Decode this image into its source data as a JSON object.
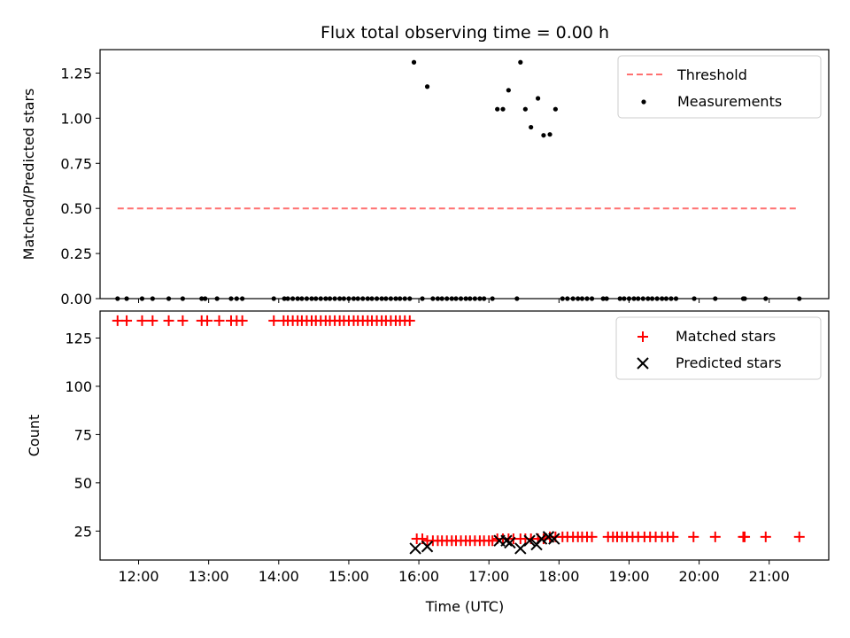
{
  "chart_data": [
    {
      "type": "scatter",
      "title": "Flux total observing time = 0.00 h",
      "xlabel": "",
      "ylabel": "Matched/Predicted stars",
      "xlim": [
        11.45,
        21.85
      ],
      "ylim": [
        0,
        1.38
      ],
      "yticks": [
        0,
        0.25,
        0.5,
        0.75,
        1.0,
        1.25
      ],
      "ytick_labels": [
        "0.00",
        "0.25",
        "0.50",
        "0.75",
        "1.00",
        "1.25"
      ],
      "legend": {
        "position": "top-right",
        "entries": [
          "Threshold",
          "Measurements"
        ]
      },
      "threshold": {
        "name": "Threshold",
        "y": 0.5,
        "x_range": [
          11.7,
          21.43
        ],
        "color": "#ff7070"
      },
      "measurements": {
        "name": "Measurements",
        "color": "#000000",
        "zero_x": [
          11.7,
          11.83,
          12.05,
          12.2,
          12.43,
          12.63,
          12.9,
          12.95,
          13.12,
          13.32,
          13.4,
          13.48,
          13.93,
          14.08,
          14.13,
          14.2,
          14.27,
          14.33,
          14.4,
          14.47,
          14.53,
          14.6,
          14.67,
          14.73,
          14.8,
          14.87,
          14.93,
          15.0,
          15.07,
          15.13,
          15.2,
          15.27,
          15.33,
          15.4,
          15.47,
          15.53,
          15.6,
          15.67,
          15.73,
          15.8,
          15.87,
          16.05,
          16.2,
          16.27,
          16.33,
          16.4,
          16.47,
          16.53,
          16.6,
          16.67,
          16.73,
          16.8,
          16.87,
          16.93,
          17.05,
          17.4,
          18.05,
          18.12,
          18.2,
          18.27,
          18.33,
          18.4,
          18.47,
          18.63,
          18.68,
          18.87,
          18.93,
          19.0,
          19.07,
          19.13,
          19.2,
          19.27,
          19.33,
          19.4,
          19.47,
          19.53,
          19.6,
          19.67,
          19.93,
          20.23,
          20.63,
          20.65,
          20.95,
          21.43
        ],
        "points": [
          {
            "x": 15.93,
            "y": 1.31
          },
          {
            "x": 16.12,
            "y": 1.175
          },
          {
            "x": 17.12,
            "y": 1.05
          },
          {
            "x": 17.2,
            "y": 1.05
          },
          {
            "x": 17.28,
            "y": 1.155
          },
          {
            "x": 17.45,
            "y": 1.31
          },
          {
            "x": 17.52,
            "y": 1.05
          },
          {
            "x": 17.6,
            "y": 0.95
          },
          {
            "x": 17.7,
            "y": 1.11
          },
          {
            "x": 17.78,
            "y": 0.905
          },
          {
            "x": 17.87,
            "y": 0.91
          },
          {
            "x": 17.95,
            "y": 1.05
          }
        ]
      }
    },
    {
      "type": "scatter",
      "title": "",
      "xlabel": "Time (UTC)",
      "ylabel": "Count",
      "xlim": [
        11.45,
        21.85
      ],
      "ylim": [
        10,
        139
      ],
      "xticks": [
        12,
        13,
        14,
        15,
        16,
        17,
        18,
        19,
        20,
        21
      ],
      "xtick_labels": [
        "12:00",
        "13:00",
        "14:00",
        "15:00",
        "16:00",
        "17:00",
        "18:00",
        "19:00",
        "20:00",
        "21:00"
      ],
      "yticks": [
        25,
        50,
        75,
        100,
        125
      ],
      "ytick_labels": [
        "25",
        "50",
        "75",
        "100",
        "125"
      ],
      "legend": {
        "position": "top-right",
        "entries": [
          "Matched stars",
          "Predicted stars"
        ]
      },
      "series": [
        {
          "name": "Matched stars",
          "marker": "+",
          "color": "#ff0000",
          "points": [
            {
              "x": 11.7,
              "y": 134
            },
            {
              "x": 11.83,
              "y": 134
            },
            {
              "x": 12.05,
              "y": 134
            },
            {
              "x": 12.2,
              "y": 134
            },
            {
              "x": 12.43,
              "y": 134
            },
            {
              "x": 12.63,
              "y": 134
            },
            {
              "x": 12.9,
              "y": 134
            },
            {
              "x": 12.98,
              "y": 134
            },
            {
              "x": 13.15,
              "y": 134
            },
            {
              "x": 13.32,
              "y": 134
            },
            {
              "x": 13.4,
              "y": 134
            },
            {
              "x": 13.48,
              "y": 134
            },
            {
              "x": 13.93,
              "y": 134
            },
            {
              "x": 14.07,
              "y": 134
            },
            {
              "x": 14.13,
              "y": 134
            },
            {
              "x": 14.2,
              "y": 134
            },
            {
              "x": 14.27,
              "y": 134
            },
            {
              "x": 14.33,
              "y": 134
            },
            {
              "x": 14.4,
              "y": 134
            },
            {
              "x": 14.47,
              "y": 134
            },
            {
              "x": 14.53,
              "y": 134
            },
            {
              "x": 14.6,
              "y": 134
            },
            {
              "x": 14.67,
              "y": 134
            },
            {
              "x": 14.73,
              "y": 134
            },
            {
              "x": 14.8,
              "y": 134
            },
            {
              "x": 14.87,
              "y": 134
            },
            {
              "x": 14.93,
              "y": 134
            },
            {
              "x": 15.0,
              "y": 134
            },
            {
              "x": 15.07,
              "y": 134
            },
            {
              "x": 15.13,
              "y": 134
            },
            {
              "x": 15.2,
              "y": 134
            },
            {
              "x": 15.27,
              "y": 134
            },
            {
              "x": 15.33,
              "y": 134
            },
            {
              "x": 15.4,
              "y": 134
            },
            {
              "x": 15.47,
              "y": 134
            },
            {
              "x": 15.53,
              "y": 134
            },
            {
              "x": 15.6,
              "y": 134
            },
            {
              "x": 15.67,
              "y": 134
            },
            {
              "x": 15.73,
              "y": 134
            },
            {
              "x": 15.8,
              "y": 134
            },
            {
              "x": 15.87,
              "y": 134
            },
            {
              "x": 15.97,
              "y": 21
            },
            {
              "x": 16.05,
              "y": 21
            },
            {
              "x": 16.12,
              "y": 20
            },
            {
              "x": 16.2,
              "y": 20
            },
            {
              "x": 16.27,
              "y": 20
            },
            {
              "x": 16.33,
              "y": 20
            },
            {
              "x": 16.4,
              "y": 20
            },
            {
              "x": 16.47,
              "y": 20
            },
            {
              "x": 16.53,
              "y": 20
            },
            {
              "x": 16.6,
              "y": 20
            },
            {
              "x": 16.67,
              "y": 20
            },
            {
              "x": 16.73,
              "y": 20
            },
            {
              "x": 16.8,
              "y": 20
            },
            {
              "x": 16.87,
              "y": 20
            },
            {
              "x": 16.93,
              "y": 20
            },
            {
              "x": 17.0,
              "y": 20
            },
            {
              "x": 17.05,
              "y": 20
            },
            {
              "x": 17.12,
              "y": 21
            },
            {
              "x": 17.2,
              "y": 21
            },
            {
              "x": 17.28,
              "y": 21
            },
            {
              "x": 17.35,
              "y": 21
            },
            {
              "x": 17.45,
              "y": 21
            },
            {
              "x": 17.52,
              "y": 21
            },
            {
              "x": 17.6,
              "y": 21
            },
            {
              "x": 17.7,
              "y": 21
            },
            {
              "x": 17.78,
              "y": 21
            },
            {
              "x": 17.87,
              "y": 22
            },
            {
              "x": 17.95,
              "y": 22
            },
            {
              "x": 18.05,
              "y": 22
            },
            {
              "x": 18.12,
              "y": 22
            },
            {
              "x": 18.2,
              "y": 22
            },
            {
              "x": 18.27,
              "y": 22
            },
            {
              "x": 18.33,
              "y": 22
            },
            {
              "x": 18.4,
              "y": 22
            },
            {
              "x": 18.47,
              "y": 22
            },
            {
              "x": 18.7,
              "y": 22
            },
            {
              "x": 18.77,
              "y": 22
            },
            {
              "x": 18.83,
              "y": 22
            },
            {
              "x": 18.9,
              "y": 22
            },
            {
              "x": 18.97,
              "y": 22
            },
            {
              "x": 19.05,
              "y": 22
            },
            {
              "x": 19.13,
              "y": 22
            },
            {
              "x": 19.22,
              "y": 22
            },
            {
              "x": 19.3,
              "y": 22
            },
            {
              "x": 19.38,
              "y": 22
            },
            {
              "x": 19.47,
              "y": 22
            },
            {
              "x": 19.55,
              "y": 22
            },
            {
              "x": 19.63,
              "y": 22
            },
            {
              "x": 19.92,
              "y": 22
            },
            {
              "x": 20.23,
              "y": 22
            },
            {
              "x": 20.63,
              "y": 22
            },
            {
              "x": 20.65,
              "y": 22
            },
            {
              "x": 20.95,
              "y": 22
            },
            {
              "x": 21.43,
              "y": 22
            }
          ]
        },
        {
          "name": "Predicted stars",
          "marker": "x",
          "color": "#000000",
          "points": [
            {
              "x": 15.95,
              "y": 16
            },
            {
              "x": 16.12,
              "y": 17
            },
            {
              "x": 17.15,
              "y": 20
            },
            {
              "x": 17.25,
              "y": 20
            },
            {
              "x": 17.3,
              "y": 19
            },
            {
              "x": 17.45,
              "y": 16
            },
            {
              "x": 17.58,
              "y": 20
            },
            {
              "x": 17.68,
              "y": 18
            },
            {
              "x": 17.75,
              "y": 21
            },
            {
              "x": 17.85,
              "y": 22
            },
            {
              "x": 17.93,
              "y": 21
            }
          ]
        }
      ]
    }
  ]
}
